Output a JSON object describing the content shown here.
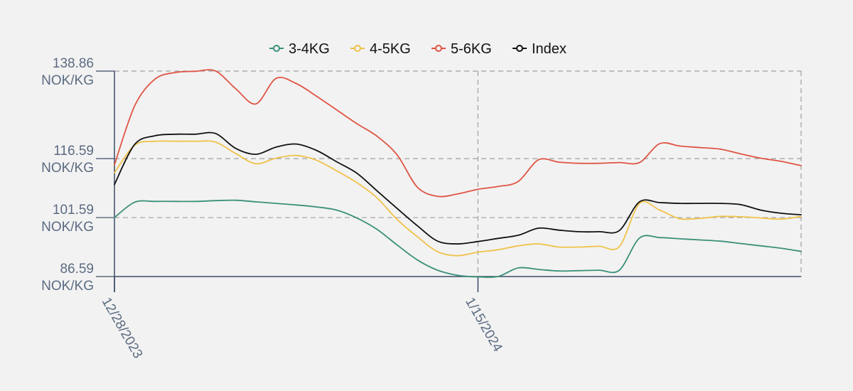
{
  "chart_data": {
    "type": "line",
    "x": [
      "12/28/2023",
      "12/29/2023",
      "12/30/2023",
      "12/31/2023",
      "1/1/2024",
      "1/2/2024",
      "1/3/2024",
      "1/4/2024",
      "1/5/2024",
      "1/6/2024",
      "1/7/2024",
      "1/8/2024",
      "1/9/2024",
      "1/10/2024",
      "1/11/2024",
      "1/12/2024",
      "1/13/2024",
      "1/14/2024",
      "1/15/2024",
      "1/16/2024",
      "1/17/2024",
      "1/18/2024",
      "1/19/2024",
      "1/20/2024",
      "1/21/2024",
      "1/22/2024",
      "1/23/2024",
      "1/24/2024",
      "1/25/2024",
      "1/26/2024",
      "1/27/2024",
      "1/28/2024",
      "1/29/2024",
      "1/30/2024",
      "1/31/2024"
    ],
    "x_ticks": [
      "12/28/2023",
      "1/15/2024"
    ],
    "y_ticks": [
      86.59,
      101.59,
      116.59,
      138.86
    ],
    "y_tick_labels": [
      {
        "value": "86.59",
        "unit": "NOK/KG"
      },
      {
        "value": "101.59",
        "unit": "NOK/KG"
      },
      {
        "value": "116.59",
        "unit": "NOK/KG"
      },
      {
        "value": "138.86",
        "unit": "NOK/KG"
      }
    ],
    "ylim": [
      86.59,
      138.86
    ],
    "grid": true,
    "legend_position": "top-center",
    "series": [
      {
        "name": "3-4KG",
        "color": "#3a9079",
        "values": [
          101.6,
          105.5,
          105.7,
          105.7,
          105.7,
          105.9,
          106.0,
          105.6,
          105.2,
          104.8,
          104.3,
          103.5,
          101.5,
          98.6,
          94.6,
          90.8,
          88.2,
          86.9,
          86.5,
          86.6,
          88.8,
          88.4,
          88.0,
          88.1,
          88.2,
          88.2,
          96.4,
          96.5,
          96.2,
          95.9,
          95.6,
          95.0,
          94.4,
          93.8,
          93.0
        ]
      },
      {
        "name": "4-5KG",
        "color": "#f0c24a",
        "values": [
          113.0,
          120.0,
          121.0,
          121.0,
          121.0,
          120.8,
          117.9,
          115.3,
          116.7,
          117.4,
          116.2,
          113.5,
          110.5,
          106.6,
          101.1,
          96.7,
          92.9,
          91.9,
          92.8,
          93.4,
          94.4,
          94.9,
          94.1,
          94.1,
          94.3,
          94.2,
          105.2,
          103.5,
          101.3,
          101.4,
          101.9,
          101.8,
          101.5,
          101.2,
          101.9
        ]
      },
      {
        "name": "5-6KG",
        "color": "#e05444",
        "values": [
          115.0,
          130.0,
          136.8,
          138.5,
          138.8,
          138.9,
          134.4,
          130.5,
          137.0,
          135.7,
          132.5,
          129.0,
          125.5,
          122.3,
          117.5,
          109.3,
          107.0,
          107.6,
          108.8,
          109.5,
          110.8,
          116.3,
          115.7,
          115.4,
          115.4,
          115.6,
          115.6,
          120.4,
          119.8,
          119.4,
          119.0,
          117.8,
          116.7,
          115.9,
          114.8
        ]
      },
      {
        "name": "Index",
        "color": "#111111",
        "values": [
          110.0,
          120.2,
          122.4,
          122.8,
          122.8,
          123.0,
          119.2,
          117.7,
          119.5,
          120.3,
          118.7,
          115.8,
          112.9,
          108.4,
          103.9,
          99.5,
          95.6,
          94.9,
          95.5,
          96.3,
          97.1,
          98.9,
          98.4,
          98.0,
          98.0,
          98.3,
          105.6,
          105.4,
          105.2,
          105.2,
          105.2,
          104.9,
          103.5,
          102.7,
          102.3
        ]
      }
    ]
  }
}
